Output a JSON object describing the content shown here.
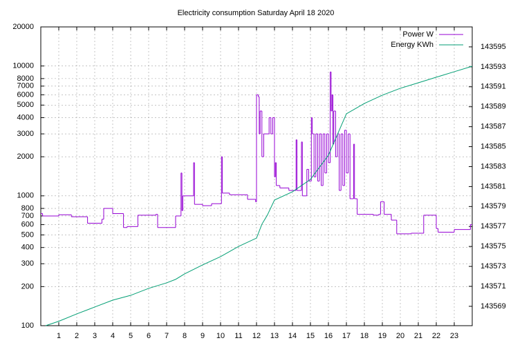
{
  "chart_data": {
    "type": "line",
    "title": "Electricity consumption Saturday April 18 2020",
    "xlim": [
      0,
      24
    ],
    "xticks": [
      1,
      2,
      3,
      4,
      5,
      6,
      7,
      8,
      9,
      10,
      11,
      12,
      13,
      14,
      15,
      16,
      17,
      18,
      19,
      20,
      21,
      22,
      23
    ],
    "ylim": [
      100,
      20000
    ],
    "yticks": [
      100,
      200,
      300,
      400,
      500,
      600,
      700,
      800,
      1000,
      2000,
      3000,
      4000,
      5000,
      6000,
      7000,
      8000,
      10000,
      20000
    ],
    "log_scale": true,
    "y2lim": [
      143567.06,
      143597.0
    ],
    "y2ticks": [
      143569,
      143571,
      143573,
      143575,
      143577,
      143579,
      143581,
      143583,
      143585,
      143587,
      143589,
      143591,
      143593,
      143595
    ],
    "grid": true,
    "legend": "top right",
    "series": [
      {
        "name": "Power W",
        "color": "#9400d3",
        "step": true,
        "x": [
          0,
          0.1,
          1,
          1.7,
          2.6,
          3.4,
          3.5,
          4.0,
          4.6,
          4.8,
          5.4,
          6.4,
          6.5,
          7.5,
          7.8,
          7.85,
          7.9,
          8.5,
          8.55,
          9,
          9.5,
          10.05,
          10.1,
          10.5,
          11.5,
          11.95,
          12.0,
          12.1,
          12.15,
          12.2,
          12.3,
          12.4,
          12.7,
          12.8,
          12.9,
          13.0,
          13.05,
          13.1,
          13.3,
          13.8,
          14.2,
          14.25,
          14.5,
          14.55,
          14.8,
          14.9,
          15.05,
          15.1,
          15.2,
          15.3,
          15.4,
          15.5,
          15.6,
          15.7,
          15.8,
          15.9,
          16.0,
          16.1,
          16.15,
          16.2,
          16.25,
          16.3,
          16.4,
          16.5,
          16.6,
          16.7,
          16.8,
          16.9,
          17.0,
          17.1,
          17.2,
          17.4,
          17.45,
          17.6,
          18.5,
          18.8,
          18.9,
          19.1,
          19.5,
          19.8,
          20.6,
          21.3,
          22.0,
          22.1,
          23.0,
          23.9,
          24
        ],
        "values": [
          730,
          700,
          715,
          690,
          615,
          660,
          800,
          730,
          570,
          580,
          710,
          720,
          570,
          700,
          1500,
          770,
          1000,
          1800,
          860,
          840,
          870,
          2000,
          1050,
          1020,
          940,
          900,
          6000,
          5800,
          3000,
          4500,
          2000,
          3000,
          4000,
          3000,
          4000,
          1400,
          1800,
          1200,
          1150,
          1100,
          2700,
          1100,
          2600,
          1000,
          1600,
          1300,
          4000,
          3000,
          1400,
          3000,
          1300,
          3000,
          1200,
          3000,
          1500,
          3000,
          1800,
          9000,
          4500,
          6000,
          2500,
          4500,
          2000,
          3000,
          1100,
          3000,
          1200,
          3200,
          1500,
          3000,
          950,
          2500,
          950,
          720,
          710,
          720,
          900,
          720,
          650,
          510,
          515,
          710,
          560,
          525,
          550,
          600,
          600
        ]
      },
      {
        "name": "Energy KWh",
        "color": "#009e73",
        "axis": "y2",
        "x": [
          0.27,
          1,
          2,
          3,
          4,
          5,
          6,
          7,
          7.5,
          8,
          9,
          10,
          11,
          12,
          12.3,
          12.6,
          13,
          14,
          15,
          16,
          16.5,
          17,
          18,
          19,
          20,
          21,
          22,
          23,
          24
        ],
        "values": [
          143567.06,
          143567.5,
          143568.24,
          143568.93,
          143569.62,
          143570.1,
          143570.8,
          143571.35,
          143571.7,
          143572.25,
          143573.15,
          143573.98,
          143575.0,
          143575.84,
          143577.23,
          143578.13,
          143579.65,
          143580.48,
          143581.72,
          143584.14,
          143586.22,
          143588.29,
          143589.33,
          143590.16,
          143590.85,
          143591.4,
          143591.96,
          143592.51,
          143593.06
        ]
      }
    ]
  }
}
